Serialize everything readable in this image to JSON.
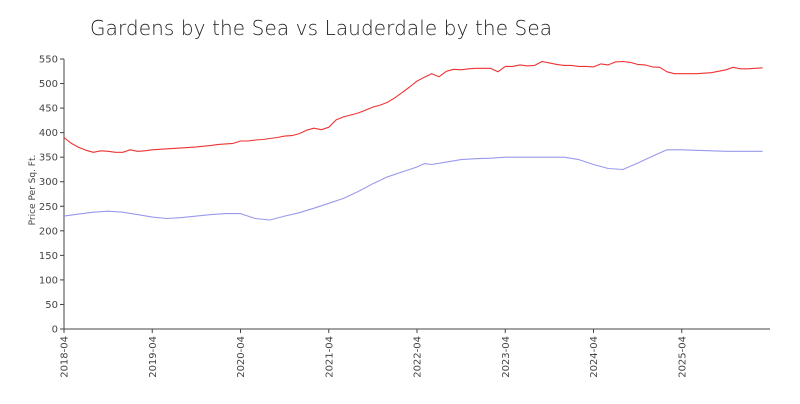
{
  "chart_data": {
    "type": "line",
    "title": "Gardens by the Sea vs Lauderdale by the Sea",
    "xlabel": "",
    "ylabel": "Price Per Sq. Ft.",
    "ylim": [
      0,
      550
    ],
    "yticks": [
      0,
      50,
      100,
      150,
      200,
      250,
      300,
      350,
      400,
      450,
      500,
      550
    ],
    "xlim": [
      "2018-04",
      "2026-04"
    ],
    "xticks": [
      "2018-04",
      "2019-04",
      "2020-04",
      "2021-04",
      "2022-04",
      "2023-04",
      "2024-04",
      "2025-04"
    ],
    "grid": false,
    "legend": "none",
    "series_colors": [
      "#ee3333",
      "#9999ee"
    ],
    "series": [
      {
        "x": [
          "2018-04",
          "2018-05",
          "2018-06",
          "2018-07",
          "2018-08",
          "2018-09",
          "2018-10",
          "2018-11",
          "2018-12",
          "2019-01",
          "2019-02",
          "2019-03",
          "2019-04",
          "2019-06",
          "2019-08",
          "2019-10",
          "2019-12",
          "2020-01",
          "2020-02",
          "2020-03",
          "2020-04",
          "2020-05",
          "2020-06",
          "2020-07",
          "2020-08",
          "2020-09",
          "2020-10",
          "2020-11",
          "2020-12",
          "2021-01",
          "2021-02",
          "2021-03",
          "2021-04",
          "2021-05",
          "2021-06",
          "2021-07",
          "2021-08",
          "2021-09",
          "2021-10",
          "2021-11",
          "2021-12",
          "2022-01",
          "2022-02",
          "2022-03",
          "2022-04",
          "2022-05",
          "2022-06",
          "2022-07",
          "2022-08",
          "2022-09",
          "2022-10",
          "2022-11",
          "2022-12",
          "2023-01",
          "2023-02",
          "2023-03",
          "2023-04",
          "2023-05",
          "2023-06",
          "2023-07",
          "2023-08",
          "2023-09",
          "2023-10",
          "2023-11",
          "2023-12",
          "2024-01",
          "2024-02",
          "2024-03",
          "2024-04",
          "2024-05",
          "2024-06",
          "2024-07",
          "2024-08",
          "2024-09",
          "2024-10",
          "2024-11",
          "2024-12",
          "2025-01",
          "2025-02",
          "2025-03",
          "2025-04",
          "2025-05",
          "2025-06",
          "2025-07",
          "2025-08",
          "2025-09",
          "2025-10",
          "2025-11",
          "2025-12",
          "2026-01",
          "2026-02",
          "2026-03"
        ],
        "values": [
          390,
          378,
          370,
          364,
          360,
          363,
          362,
          360,
          360,
          365,
          362,
          363,
          365,
          367,
          369,
          371,
          374,
          376,
          377,
          378,
          383,
          383,
          385,
          386,
          388,
          390,
          393,
          394,
          398,
          405,
          409,
          406,
          411,
          426,
          432,
          436,
          440,
          446,
          452,
          456,
          462,
          471,
          482,
          493,
          505,
          513,
          520,
          514,
          525,
          529,
          528,
          530,
          531,
          531,
          531,
          524,
          535,
          535,
          538,
          536,
          537,
          545,
          542,
          539,
          537,
          537,
          535,
          535,
          534,
          540,
          538,
          544,
          545,
          543,
          539,
          538,
          534,
          533,
          524,
          520,
          520,
          520,
          520,
          521,
          522,
          525,
          528,
          533,
          530,
          530,
          531,
          532
        ]
      },
      {
        "x": [
          "2018-04",
          "2018-06",
          "2018-08",
          "2018-10",
          "2018-12",
          "2019-02",
          "2019-04",
          "2019-06",
          "2019-08",
          "2019-10",
          "2019-12",
          "2020-01",
          "2020-02",
          "2020-03",
          "2020-04",
          "2020-06",
          "2020-08",
          "2020-10",
          "2020-12",
          "2021-02",
          "2021-04",
          "2021-06",
          "2021-08",
          "2021-10",
          "2021-12",
          "2022-02",
          "2022-04",
          "2022-05",
          "2022-06",
          "2022-08",
          "2022-10",
          "2022-12",
          "2023-02",
          "2023-04",
          "2023-06",
          "2023-08",
          "2023-10",
          "2023-12",
          "2024-02",
          "2024-04",
          "2024-06",
          "2024-08",
          "2024-10",
          "2024-12",
          "2025-02",
          "2025-04",
          "2025-06",
          "2025-08",
          "2025-10",
          "2025-12",
          "2026-02",
          "2026-03"
        ],
        "values": [
          230,
          234,
          238,
          240,
          238,
          233,
          228,
          225,
          227,
          230,
          233,
          234,
          235,
          235,
          235,
          225,
          222,
          230,
          237,
          246,
          256,
          266,
          280,
          296,
          310,
          320,
          330,
          337,
          335,
          340,
          345,
          347,
          348,
          350,
          350,
          350,
          350,
          350,
          345,
          335,
          327,
          325,
          338,
          352,
          365,
          365,
          364,
          363,
          362,
          362,
          362,
          362
        ]
      }
    ]
  }
}
